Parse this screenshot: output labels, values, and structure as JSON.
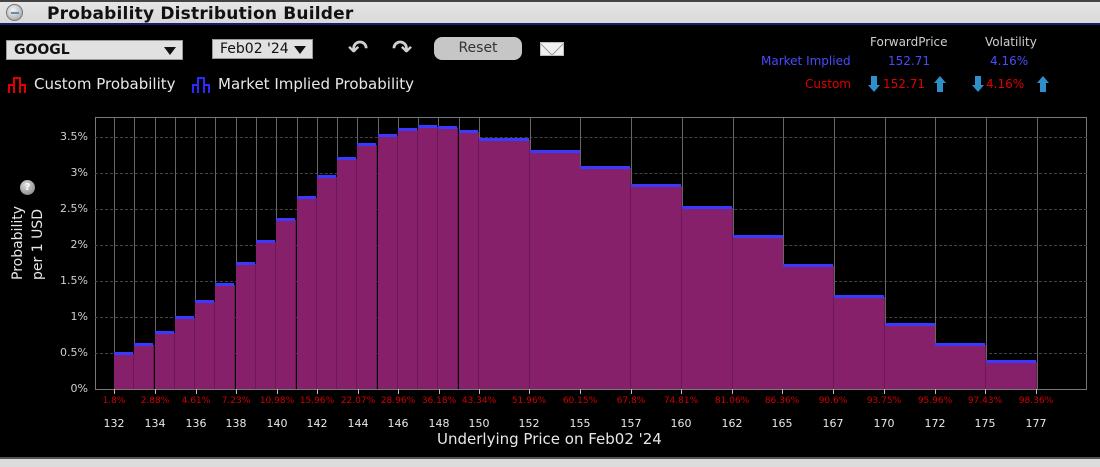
{
  "window": {
    "title": "Probability Distribution Builder"
  },
  "toolbar": {
    "ticker": "GOOGL",
    "expiry": "Feb02 '24",
    "undo_icon": "undo-icon",
    "redo_icon": "redo-icon",
    "reset_label": "Reset",
    "mail_icon": "envelope-icon"
  },
  "legend": {
    "custom": {
      "label": "Custom Probability",
      "color": "#e00000"
    },
    "market": {
      "label": "Market Implied Probability",
      "color": "#2a2aff"
    }
  },
  "stats": {
    "headers": {
      "forward": "ForwardPrice",
      "volatility": "Volatility"
    },
    "market_implied": {
      "label": "Market Implied",
      "forward": "152.71",
      "volatility": "4.16%",
      "color": "#4a4aff"
    },
    "custom": {
      "label": "Custom",
      "forward": "152.71",
      "volatility": "4.16%",
      "color": "#e00000"
    }
  },
  "colors": {
    "bar_fill": "#87206b",
    "bar_cap": "#3a3aff",
    "cumulative_label": "#d10000"
  },
  "chart_data": {
    "type": "bar",
    "title": "Probability Distribution Builder",
    "xlabel": "Underlying Price on Feb02 '24",
    "ylabel": "Probability per 1 USD",
    "ylim": [
      0,
      3.8
    ],
    "yticks": [
      "0%",
      "0.5%",
      "1%",
      "1.5%",
      "2%",
      "2.5%",
      "3%",
      "3.5%"
    ],
    "grid": true,
    "x_tick_labels": [
      "132",
      "134",
      "136",
      "138",
      "140",
      "142",
      "144",
      "146",
      "148",
      "150",
      "152",
      "155",
      "157",
      "160",
      "162",
      "165",
      "167",
      "170",
      "172",
      "175",
      "177"
    ],
    "cumulative_labels": [
      "1.8%",
      "2.88%",
      "4.61%",
      "7.23%",
      "10.98%",
      "15.96%",
      "22.07%",
      "28.96%",
      "36.18%",
      "43.34%",
      "51.96%",
      "60.15%",
      "67.8%",
      "74.81%",
      "81.06%",
      "86.36%",
      "90.6%",
      "93.75%",
      "95.96%",
      "97.43%",
      "98.36%"
    ],
    "bins": [
      {
        "from": 132,
        "to": 133,
        "value": 0.49
      },
      {
        "from": 133,
        "to": 134,
        "value": 0.61
      },
      {
        "from": 134,
        "to": 135,
        "value": 0.78
      },
      {
        "from": 135,
        "to": 136,
        "value": 0.99
      },
      {
        "from": 136,
        "to": 137,
        "value": 1.21
      },
      {
        "from": 137,
        "to": 138,
        "value": 1.44
      },
      {
        "from": 138,
        "to": 139,
        "value": 1.74
      },
      {
        "from": 139,
        "to": 140,
        "value": 2.04
      },
      {
        "from": 140,
        "to": 141,
        "value": 2.35
      },
      {
        "from": 141,
        "to": 142,
        "value": 2.65
      },
      {
        "from": 142,
        "to": 143,
        "value": 2.94
      },
      {
        "from": 143,
        "to": 144,
        "value": 3.19
      },
      {
        "from": 144,
        "to": 145,
        "value": 3.39
      },
      {
        "from": 145,
        "to": 146,
        "value": 3.51
      },
      {
        "from": 146,
        "to": 147,
        "value": 3.6
      },
      {
        "from": 147,
        "to": 148,
        "value": 3.64
      },
      {
        "from": 148,
        "to": 149,
        "value": 3.62
      },
      {
        "from": 149,
        "to": 150,
        "value": 3.57
      },
      {
        "from": 150,
        "to": 152.5,
        "value": 3.46
      },
      {
        "from": 152.5,
        "to": 155,
        "value": 3.29
      },
      {
        "from": 155,
        "to": 157.5,
        "value": 3.07
      },
      {
        "from": 157.5,
        "to": 160,
        "value": 2.82
      },
      {
        "from": 160,
        "to": 162.5,
        "value": 2.51
      },
      {
        "from": 162.5,
        "to": 165,
        "value": 2.11
      },
      {
        "from": 165,
        "to": 167.5,
        "value": 1.71
      },
      {
        "from": 167.5,
        "to": 170,
        "value": 1.28
      },
      {
        "from": 170,
        "to": 172.5,
        "value": 0.89
      },
      {
        "from": 172.5,
        "to": 175,
        "value": 0.61
      },
      {
        "from": 175,
        "to": 177.5,
        "value": 0.38
      }
    ],
    "series": [
      {
        "name": "Custom Probability",
        "values": "same as bins"
      },
      {
        "name": "Market Implied Probability",
        "values": "same as bins"
      }
    ]
  }
}
